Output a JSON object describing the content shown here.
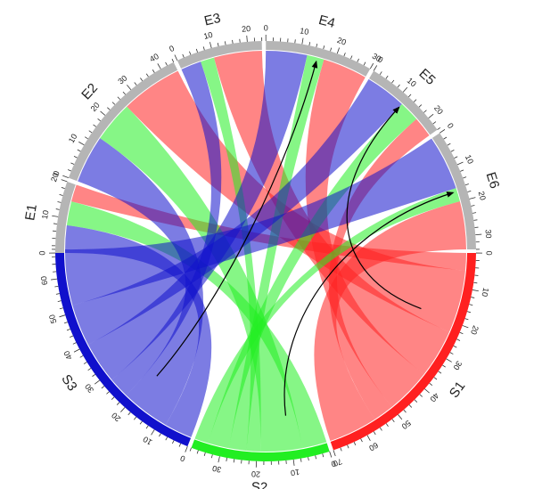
{
  "chart_data": {
    "type": "chord",
    "title": "",
    "sources": [
      {
        "name": "S1",
        "total": 70,
        "color": "#ff2020",
        "tick_step": 10
      },
      {
        "name": "S2",
        "total": 38,
        "color": "#22ee22",
        "tick_step": 10
      },
      {
        "name": "S3",
        "total": 68,
        "color": "#1010cc",
        "tick_step": 10
      }
    ],
    "targets": [
      {
        "name": "E1",
        "total": 20,
        "tick_step": 10
      },
      {
        "name": "E2",
        "total": 44,
        "tick_step": 10
      },
      {
        "name": "E3",
        "total": 24,
        "tick_step": 10
      },
      {
        "name": "E4",
        "total": 30,
        "tick_step": 10
      },
      {
        "name": "E5",
        "total": 24,
        "tick_step": 10
      },
      {
        "name": "E6",
        "total": 34,
        "tick_step": 10
      }
    ],
    "flows": [
      {
        "source": "S3",
        "target": "E1",
        "value": 8
      },
      {
        "source": "S2",
        "target": "E1",
        "value": 7
      },
      {
        "source": "S1",
        "target": "E1",
        "value": 5
      },
      {
        "source": "S3",
        "target": "E2",
        "value": 14
      },
      {
        "source": "S2",
        "target": "E2",
        "value": 12
      },
      {
        "source": "S1",
        "target": "E2",
        "value": 18
      },
      {
        "source": "S3",
        "target": "E3",
        "value": 6
      },
      {
        "source": "S2",
        "target": "E3",
        "value": 4
      },
      {
        "source": "S1",
        "target": "E3",
        "value": 14
      },
      {
        "source": "S3",
        "target": "E4",
        "value": 12
      },
      {
        "source": "S2",
        "target": "E4",
        "value": 5
      },
      {
        "source": "S1",
        "target": "E4",
        "value": 13
      },
      {
        "source": "S3",
        "target": "E5",
        "value": 12
      },
      {
        "source": "S2",
        "target": "E5",
        "value": 6
      },
      {
        "source": "S1",
        "target": "E5",
        "value": 6
      },
      {
        "source": "S3",
        "target": "E6",
        "value": 16
      },
      {
        "source": "S2",
        "target": "E6",
        "value": 4
      },
      {
        "source": "S1",
        "target": "E6",
        "value": 14
      }
    ],
    "target_ring_color": "#b5b5b5",
    "ribbon_opacity": 0.55,
    "arrows": [
      {
        "from": "S1",
        "to": "E5"
      },
      {
        "from": "S2",
        "to": "E6"
      },
      {
        "from": "S3",
        "to": "E4"
      }
    ],
    "legend": "none",
    "grid": false
  }
}
